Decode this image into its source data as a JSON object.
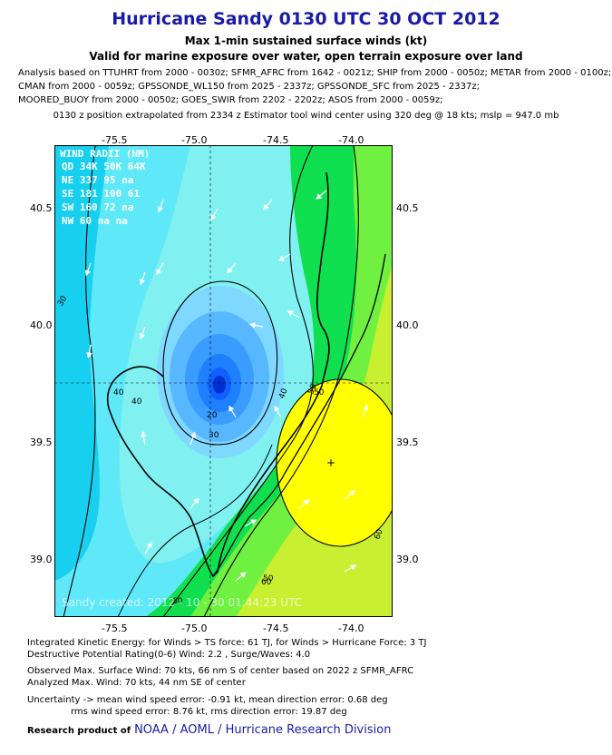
{
  "header": {
    "title": "Hurricane Sandy 0130 UTC 30 OCT 2012",
    "subtitle": "Max 1-min sustained surface winds (kt)",
    "valid": "Valid for marine exposure over water, open terrain exposure over land",
    "analysis_lines": [
      "Analysis based on TTUHRT from 2000 - 0030z; SFMR_AFRC from 1642 - 0021z; SHIP from 2000 - 0050z; METAR from 2000 - 0100z;",
      "CMAN from 2000 - 0059z; GPSSONDE_WL150 from 2025 - 2337z; GPSSONDE_SFC from 2025 - 2337z;",
      "MOORED_BUOY from 2000 - 0050z; GOES_SWIR from 2202 - 2202z; ASOS from 2000 - 0059z;"
    ],
    "position_note": "0130 z position extrapolated from 2334 z Estimator tool wind center using 320 deg @ 18 kts; mslp = 947.0 mb"
  },
  "map": {
    "lon_ticks": [
      "-75.5",
      "-75.0",
      "-74.5",
      "-74.0"
    ],
    "lat_ticks": [
      "40.5",
      "40.0",
      "39.5",
      "39.0"
    ],
    "contour_labels": [
      "30",
      "40",
      "50",
      "60",
      "20",
      "40",
      "50",
      "30",
      "60",
      "60",
      "40",
      "50"
    ],
    "wind_radii": {
      "title": "WIND RADII (NM)",
      "header": "QD 34K 50K 64K",
      "rows": [
        "NE 337  95  na",
        "SE 181 100  61",
        "SW 160  72  na",
        "NW  60  na  na"
      ]
    },
    "watermark": "Sandy    created: 2012 - 10 - 30 01:44:23 UTC",
    "colors": {
      "cyan_outer": "#17d0f0",
      "cyan_light": "#5fe8f8",
      "aqua": "#80f0f0",
      "blue_core": "#1060ff",
      "green": "#10e050",
      "light_green": "#70f040",
      "yellow_green": "#c8f030",
      "yellow": "#ffff00"
    }
  },
  "footer": {
    "lines": [
      "Integrated Kinetic Energy: for Winds > TS force: 61 TJ, for Winds > Hurricane Force: 3 TJ",
      "Destructive Potential Rating(0-6)  Wind: 2.2 , Surge/Waves: 4.0",
      "Observed Max. Surface Wind: 70 kts, 66 nm S of center based on 2022 z SFMR_AFRC",
      "Analyzed Max. Wind: 70 kts, 44 nm SE of center",
      "Uncertainty -> mean wind speed error: -0.91 kt, mean direction error: 0.68 deg",
      "rms wind speed error: 8.76 kt, rms direction error: 19.87 deg"
    ],
    "research_label": "Research product of",
    "research_org": "NOAA / AOML / Hurricane Research Division"
  }
}
